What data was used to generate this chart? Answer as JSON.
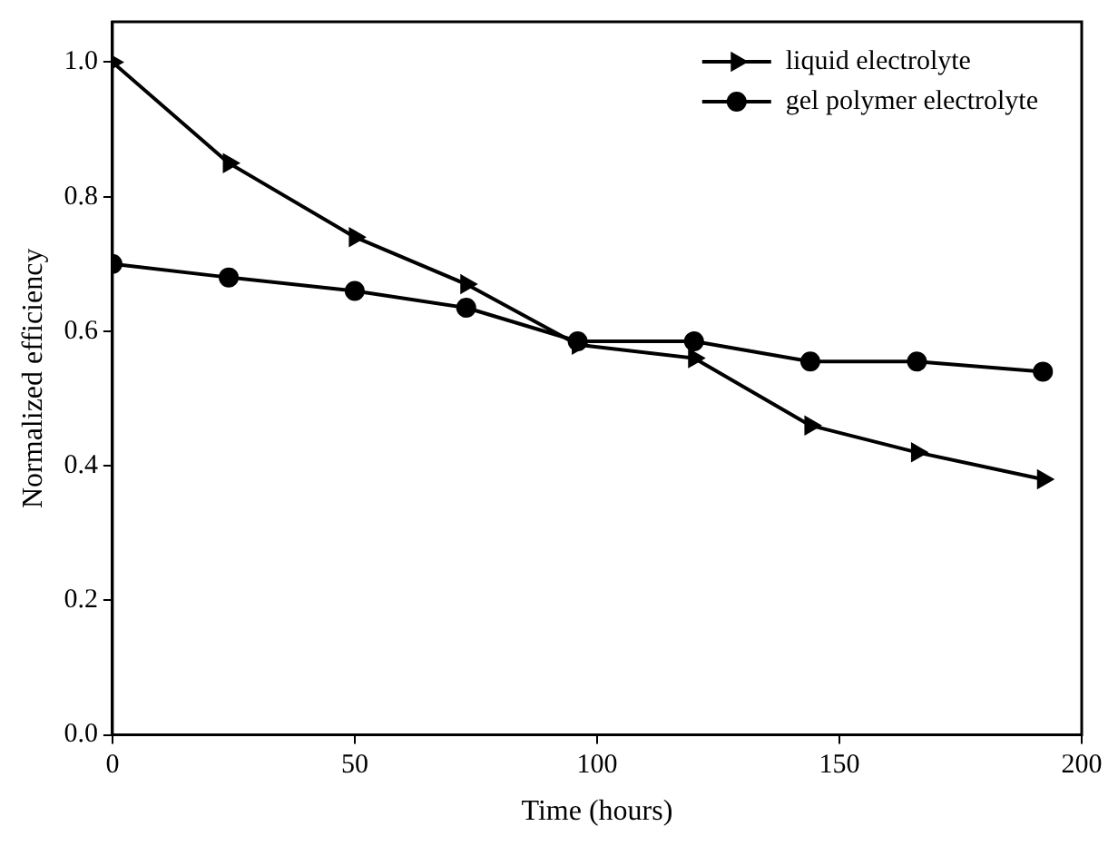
{
  "chart_data": {
    "type": "line",
    "xlabel": "Time (hours)",
    "ylabel": "Normalized efficiency",
    "x": [
      0,
      24,
      50,
      73,
      96,
      120,
      144,
      166,
      192
    ],
    "series": [
      {
        "name": "liquid electrolyte",
        "color": "#000000",
        "marker": "triangle",
        "values": [
          1.0,
          0.85,
          0.74,
          0.67,
          0.58,
          0.56,
          0.46,
          0.42,
          0.38
        ]
      },
      {
        "name": "gel polymer electrolyte",
        "color": "#000000",
        "marker": "circle",
        "values": [
          0.7,
          0.68,
          0.66,
          0.635,
          0.585,
          0.585,
          0.555,
          0.555,
          0.54
        ]
      }
    ],
    "xlim": [
      0,
      200
    ],
    "xticks": [
      0,
      50,
      100,
      150,
      200
    ],
    "ylim": [
      0,
      1.06
    ],
    "yticks": [
      {
        "value": 0,
        "label": "0.0"
      },
      0.2,
      0.4,
      0.6,
      0.8,
      {
        "value": 1,
        "label": "1.0"
      }
    ],
    "grid": false,
    "legend": "top right",
    "line_style": "solid"
  }
}
